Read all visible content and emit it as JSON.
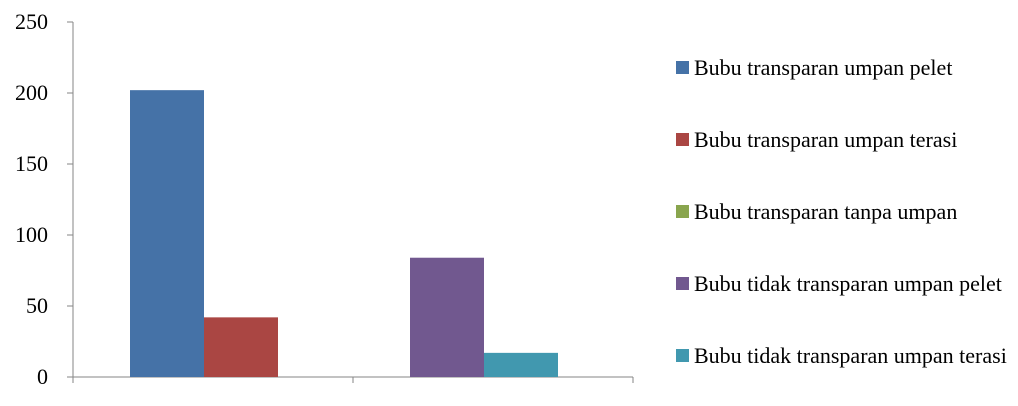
{
  "chart_data": {
    "type": "bar",
    "categories": [
      "",
      ""
    ],
    "series": [
      {
        "name": "Bubu transparan umpan pelet",
        "color": "#4572A7",
        "values": [
          202,
          0
        ]
      },
      {
        "name": "Bubu transparan umpan terasi",
        "color": "#AA4643",
        "values": [
          42,
          0
        ]
      },
      {
        "name": "Bubu transparan tanpa umpan",
        "color": "#89A54E",
        "values": [
          0,
          0
        ]
      },
      {
        "name": "Bubu tidak transparan umpan pelet",
        "color": "#71588F",
        "values": [
          0,
          84
        ]
      },
      {
        "name": "Bubu tidak transparan umpan terasi",
        "color": "#4198AF",
        "values": [
          0,
          17
        ]
      }
    ],
    "ylim": [
      0,
      250
    ],
    "yticks": [
      "0",
      "50",
      "100",
      "150",
      "200",
      "250"
    ],
    "legend_position": "right",
    "grid": false
  }
}
